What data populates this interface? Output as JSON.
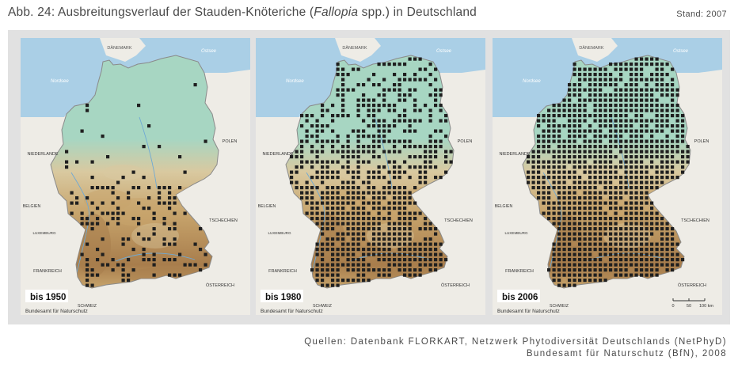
{
  "title": {
    "prefix": "Abb. 24: Ausbreitungsverlauf der Stauden-Knöteriche (",
    "species": "Fallopia",
    "suffix": " spp.) in Deutschland"
  },
  "stand": "Stand: 2007",
  "maps": [
    {
      "period_label": "bis 1950",
      "year": 1950,
      "credit": "Bundesamt für Naturschutz",
      "show_scale": false
    },
    {
      "period_label": "bis 1980",
      "year": 1980,
      "credit": "Bundesamt für Naturschutz",
      "show_scale": false
    },
    {
      "period_label": "bis 2006",
      "year": 2006,
      "credit": "Bundesamt für Naturschutz",
      "show_scale": true
    }
  ],
  "place_labels": {
    "daenemark": "DÄNEMARK",
    "nordsee": "Nordsee",
    "ostsee": "Ostsee",
    "polen": "POLEN",
    "niederlande": "NIEDERLANDE",
    "belgien": "BELGIEN",
    "luxemburg": "LUXEMBURG",
    "tschechien": "TSCHECHIEN",
    "frankreich": "FRANKREICH",
    "oesterreich": "ÖSTERREICH",
    "schweiz": "SCHWEIZ"
  },
  "scale_bar": {
    "ticks": [
      "0",
      "50",
      "100 km"
    ]
  },
  "sources": {
    "line1": "Quellen: Datenbank FLORKART, Netzwerk Phytodiversität Deutschlands (NetPhyD)",
    "line2": "Bundesamt für Naturschutz (BfN), 2008"
  },
  "colors": {
    "sea": "#aacfe6",
    "land_outside": "#eeece6",
    "lowland": "#a7d6c2",
    "midland": "#d9c9a0",
    "upland": "#c7a46c",
    "mountain": "#a87d4c",
    "dot": "#1f1f1f",
    "label_box": "#ffffff"
  }
}
